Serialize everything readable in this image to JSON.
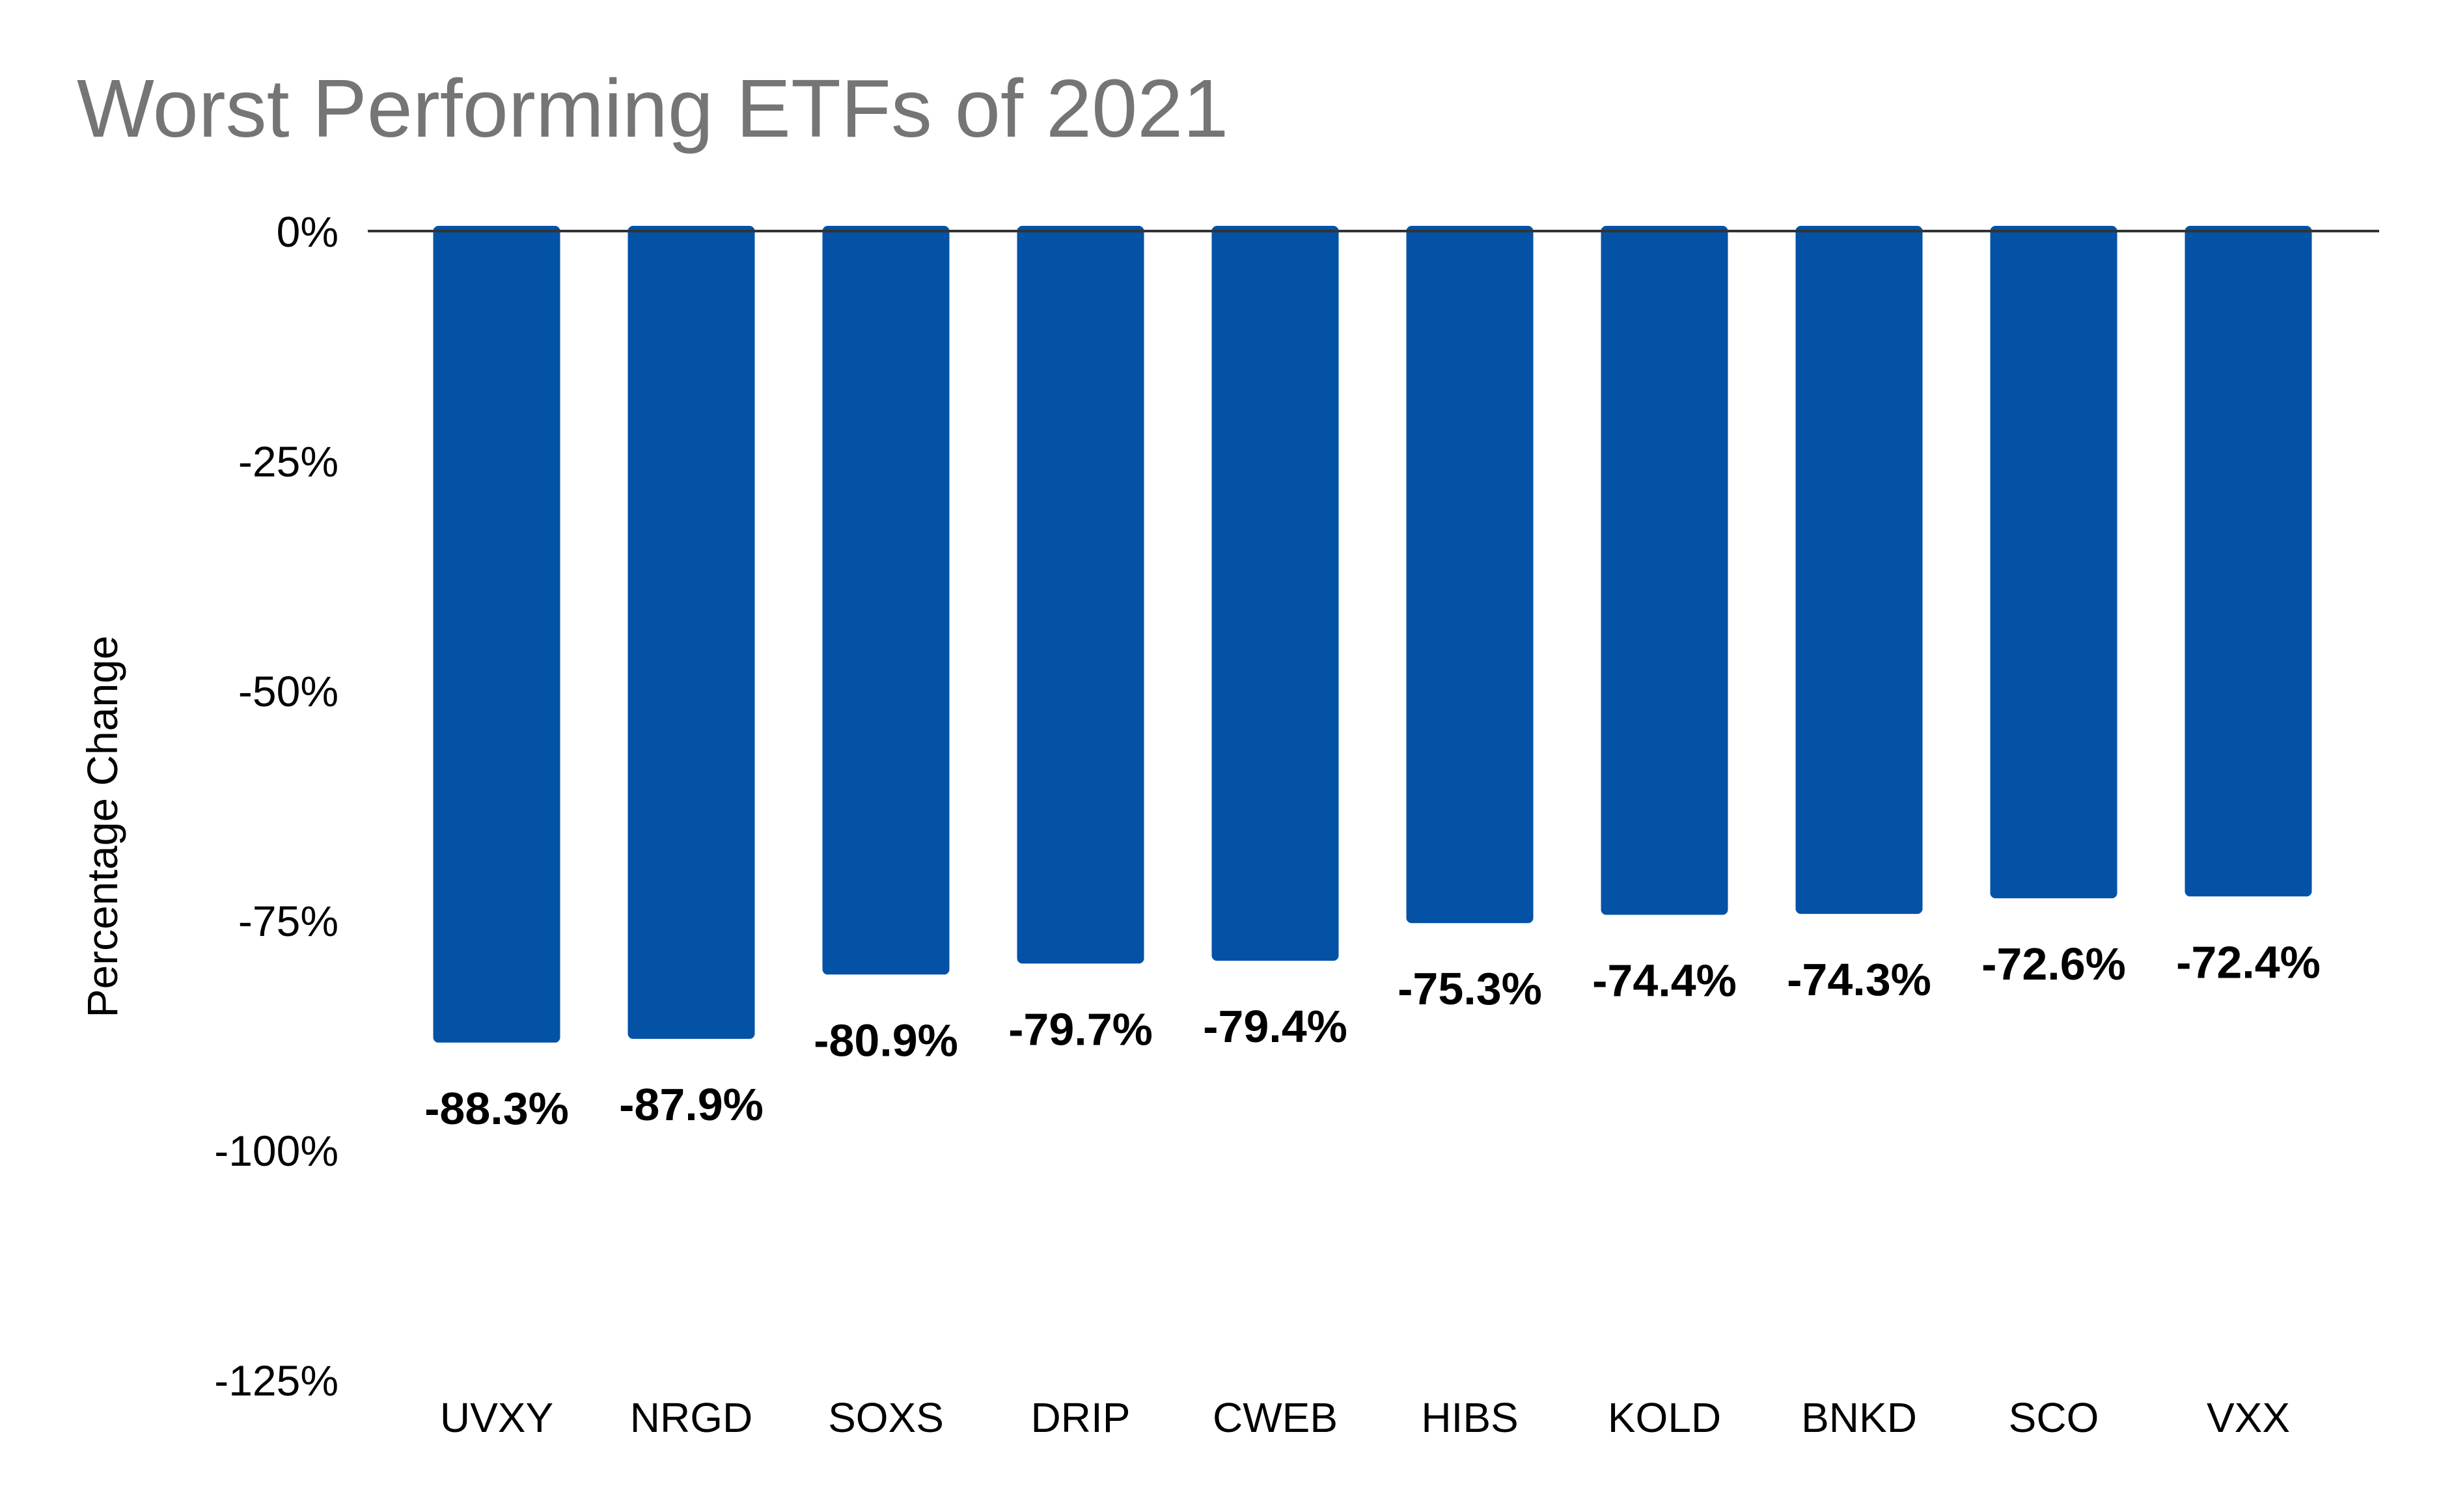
{
  "chart_data": {
    "type": "bar",
    "title": "Worst Performing ETFs of 2021",
    "xlabel": "",
    "ylabel": "Percentage Change",
    "categories": [
      "UVXY",
      "NRGD",
      "SOXS",
      "DRIP",
      "CWEB",
      "HIBS",
      "KOLD",
      "BNKD",
      "SCO",
      "VXX"
    ],
    "values": [
      -88.3,
      -87.9,
      -80.9,
      -79.7,
      -79.4,
      -75.3,
      -74.4,
      -74.3,
      -72.6,
      -72.4
    ],
    "value_labels": [
      "-88.3%",
      "-87.9%",
      "-80.9%",
      "-79.7%",
      "-79.4%",
      "-75.3%",
      "-74.4%",
      "-74.3%",
      "-72.6%",
      "-72.4%"
    ],
    "yticks": [
      0,
      -25,
      -50,
      -75,
      -100,
      -125
    ],
    "ytick_labels": [
      "0%",
      "-25%",
      "-50%",
      "-75%",
      "-100%",
      "-125%"
    ],
    "ylim": [
      -125,
      0
    ],
    "grid": false,
    "legend": "none",
    "colors": {
      "bar": "#0352A6",
      "title": "#757575",
      "text": "#000000",
      "baseline": "#333333"
    }
  }
}
